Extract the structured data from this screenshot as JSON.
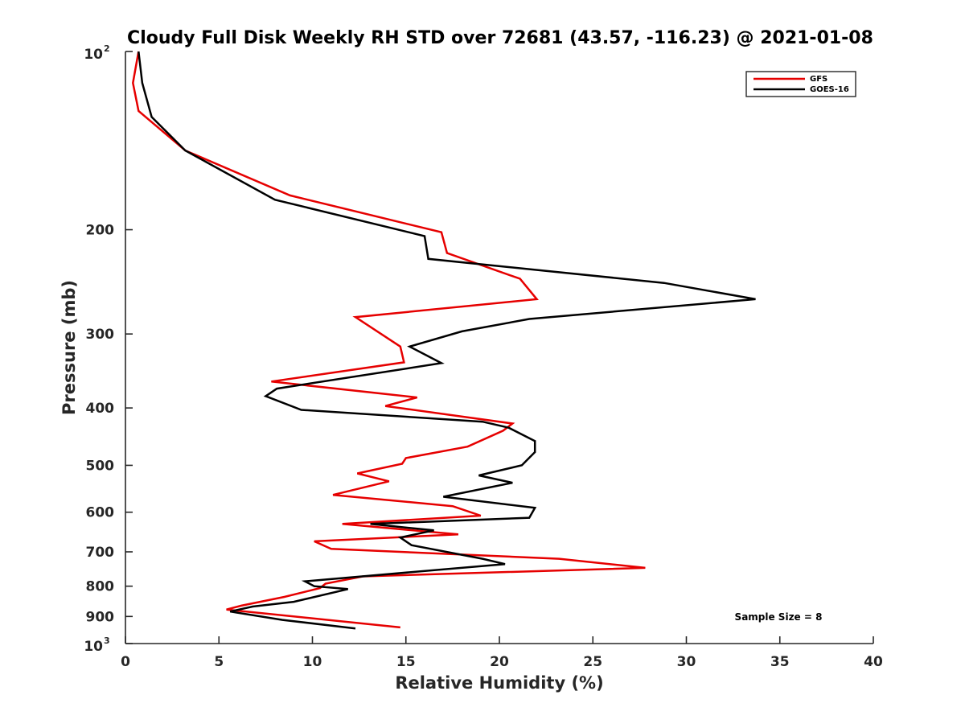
{
  "chart_data": {
    "type": "line",
    "title": "Cloudy Full Disk Weekly RH STD over 72681 (43.57, -116.23) @ 2021-01-08",
    "xlabel": "Relative Humidity (%)",
    "ylabel": "Pressure (mb)",
    "xlim": [
      0,
      40
    ],
    "ylim": [
      100,
      1000
    ],
    "y_scale": "log",
    "y_reversed": true,
    "grid": false,
    "legend_position": "top-right",
    "x_ticks": [
      0,
      5,
      10,
      15,
      20,
      25,
      30,
      35,
      40
    ],
    "x_tick_labels": [
      "0",
      "5",
      "10",
      "15",
      "20",
      "25",
      "30",
      "35",
      "40"
    ],
    "y_ticks": [
      {
        "value": 100,
        "label": "10",
        "exp": "2"
      },
      {
        "value": 200,
        "label": "200",
        "exp": ""
      },
      {
        "value": 300,
        "label": "300",
        "exp": ""
      },
      {
        "value": 400,
        "label": "400",
        "exp": ""
      },
      {
        "value": 500,
        "label": "500",
        "exp": ""
      },
      {
        "value": 600,
        "label": "600",
        "exp": ""
      },
      {
        "value": 700,
        "label": "700",
        "exp": ""
      },
      {
        "value": 800,
        "label": "800",
        "exp": ""
      },
      {
        "value": 900,
        "label": "900",
        "exp": ""
      },
      {
        "value": 1000,
        "label": "10",
        "exp": "3"
      }
    ],
    "annotation": "Sample Size = 8",
    "series": [
      {
        "name": "GFS",
        "color": "#e60000",
        "points": [
          [
            0.7,
            100
          ],
          [
            0.4,
            113
          ],
          [
            0.7,
            126
          ],
          [
            3.2,
            147
          ],
          [
            8.8,
            175
          ],
          [
            16.9,
            202
          ],
          [
            17.2,
            219
          ],
          [
            21.1,
            242
          ],
          [
            22.0,
            262
          ],
          [
            12.3,
            281
          ],
          [
            14.7,
            315
          ],
          [
            14.9,
            335
          ],
          [
            7.8,
            361
          ],
          [
            15.6,
            384
          ],
          [
            13.9,
            397
          ],
          [
            20.7,
            425
          ],
          [
            20.2,
            437
          ],
          [
            18.3,
            465
          ],
          [
            15.0,
            486
          ],
          [
            14.8,
            497
          ],
          [
            12.4,
            516
          ],
          [
            14.1,
            532
          ],
          [
            11.1,
            561
          ],
          [
            17.5,
            586
          ],
          [
            19.0,
            608
          ],
          [
            11.6,
            628
          ],
          [
            17.8,
            654
          ],
          [
            10.1,
            672
          ],
          [
            11.0,
            692
          ],
          [
            23.2,
            719
          ],
          [
            27.8,
            745
          ],
          [
            12.7,
            770
          ],
          [
            10.7,
            792
          ],
          [
            10.4,
            806
          ],
          [
            8.5,
            834
          ],
          [
            6.2,
            863
          ],
          [
            5.4,
            876
          ],
          [
            14.7,
            939
          ]
        ]
      },
      {
        "name": "GOES-16",
        "color": "#000000",
        "points": [
          [
            0.7,
            100
          ],
          [
            0.9,
            113
          ],
          [
            1.4,
            129
          ],
          [
            3.2,
            147
          ],
          [
            8.0,
            178
          ],
          [
            16.0,
            205
          ],
          [
            16.2,
            224
          ],
          [
            28.8,
            246
          ],
          [
            33.7,
            262
          ],
          [
            21.6,
            283
          ],
          [
            18.0,
            297
          ],
          [
            15.2,
            315
          ],
          [
            16.9,
            336
          ],
          [
            8.1,
            371
          ],
          [
            7.5,
            382
          ],
          [
            9.4,
            403
          ],
          [
            19.1,
            422
          ],
          [
            20.5,
            432
          ],
          [
            21.9,
            455
          ],
          [
            21.9,
            475
          ],
          [
            21.2,
            500
          ],
          [
            18.9,
            520
          ],
          [
            20.7,
            535
          ],
          [
            17.0,
            565
          ],
          [
            21.9,
            590
          ],
          [
            21.6,
            613
          ],
          [
            13.1,
            628
          ],
          [
            16.5,
            644
          ],
          [
            14.7,
            662
          ],
          [
            15.3,
            682
          ],
          [
            19.1,
            719
          ],
          [
            20.3,
            734
          ],
          [
            9.6,
            785
          ],
          [
            10.1,
            800
          ],
          [
            11.9,
            809
          ],
          [
            9.0,
            850
          ],
          [
            6.8,
            866
          ],
          [
            5.6,
            883
          ],
          [
            8.4,
            912
          ],
          [
            12.3,
            943
          ]
        ]
      }
    ]
  }
}
